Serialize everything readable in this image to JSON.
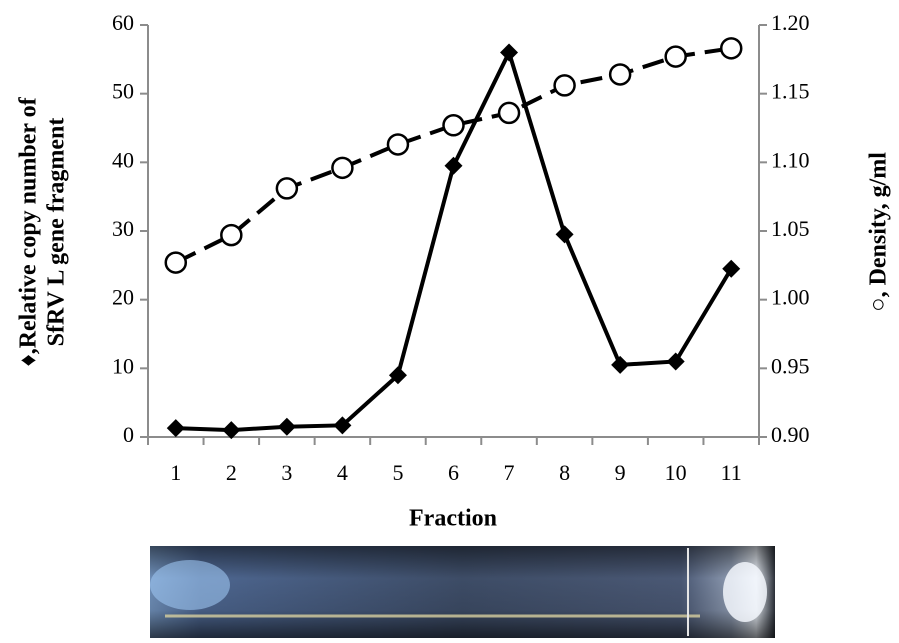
{
  "chart_data": {
    "type": "line",
    "xlabel": "Fraction",
    "ylabel": [
      "♦,Relative copy number of",
      "SfRV L gene fragment"
    ],
    "y2label": "○, Density, g/ml",
    "categories": [
      "1",
      "2",
      "3",
      "4",
      "5",
      "6",
      "7",
      "8",
      "9",
      "10",
      "11"
    ],
    "series": [
      {
        "color": "#000000",
        "marker": "diamond",
        "dash": false,
        "values": [
          1.3,
          1.0,
          1.5,
          1.7,
          9,
          39.5,
          56,
          29.5,
          10.5,
          11,
          24.5
        ]
      },
      {
        "color": "#000000",
        "marker": "circle",
        "dash": true,
        "axis": "y2",
        "values": [
          1.027,
          1.047,
          1.081,
          1.096,
          1.113,
          1.127,
          1.136,
          1.156,
          1.164,
          1.177,
          1.183
        ]
      }
    ],
    "ylim": [
      0,
      60
    ],
    "yticks": [
      0,
      10,
      20,
      30,
      40,
      50,
      60
    ],
    "y2lim": [
      0.9,
      1.2
    ],
    "y2ticks": [
      {
        "value": 0.9,
        "label": "0.90"
      },
      0.95,
      {
        "value": 1.0,
        "label": "1.00"
      },
      1.05,
      {
        "value": 1.1,
        "label": "1.10"
      },
      1.15,
      {
        "value": 1.2,
        "label": "1.20"
      }
    ],
    "grid": false
  }
}
